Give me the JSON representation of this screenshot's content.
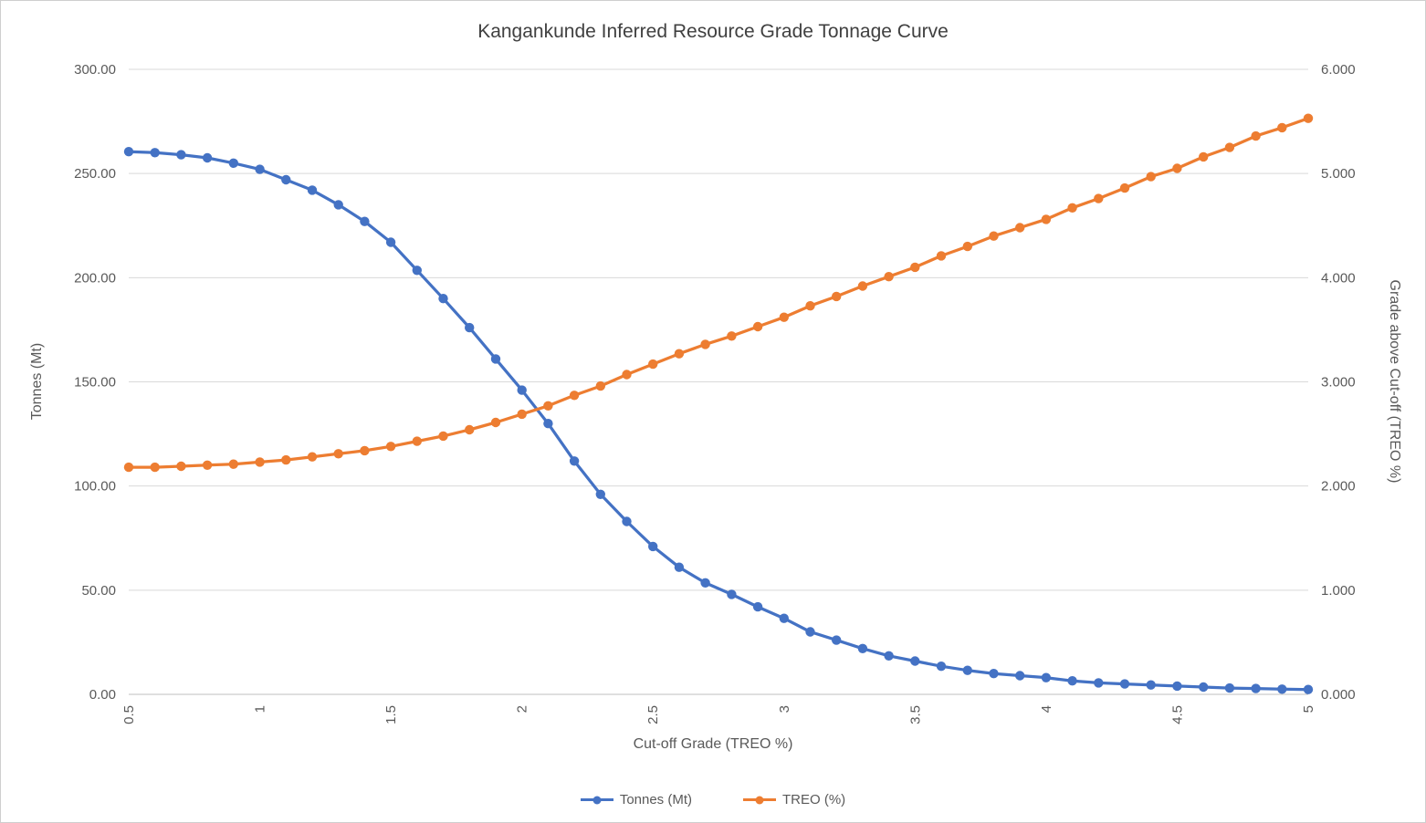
{
  "chart_data": {
    "type": "line",
    "title": "Kangankunde Inferred Resource Grade Tonnage Curve",
    "xlabel": "Cut-off Grade (TREO %)",
    "ylabel_left": "Tonnes (Mt)",
    "ylabel_right": "Grade above Cut-off (TREO %)",
    "xlim": [
      0.5,
      5.0
    ],
    "ylim_left": [
      0,
      300
    ],
    "ylim_right": [
      0,
      6
    ],
    "x_ticks": [
      "0.5",
      "1",
      "1.5",
      "2",
      "2.5",
      "3",
      "3.5",
      "4",
      "4.5",
      "5"
    ],
    "x_tick_values": [
      0.5,
      1,
      1.5,
      2,
      2.5,
      3,
      3.5,
      4,
      4.5,
      5
    ],
    "y_ticks_left": [
      "0.00",
      "50.00",
      "100.00",
      "150.00",
      "200.00",
      "250.00",
      "300.00"
    ],
    "y_ticks_right": [
      "0.000",
      "1.000",
      "2.000",
      "3.000",
      "4.000",
      "5.000",
      "6.000"
    ],
    "grid": true,
    "legend_position": "bottom",
    "x": [
      0.5,
      0.6,
      0.7,
      0.8,
      0.9,
      1.0,
      1.1,
      1.2,
      1.3,
      1.4,
      1.5,
      1.6,
      1.7,
      1.8,
      1.9,
      2.0,
      2.1,
      2.2,
      2.3,
      2.4,
      2.5,
      2.6,
      2.7,
      2.8,
      2.9,
      3.0,
      3.1,
      3.2,
      3.3,
      3.4,
      3.5,
      3.6,
      3.7,
      3.8,
      3.9,
      4.0,
      4.1,
      4.2,
      4.3,
      4.4,
      4.5,
      4.6,
      4.7,
      4.8,
      4.9,
      5.0
    ],
    "series": [
      {
        "name": "Tonnes (Mt)",
        "axis": "left",
        "color": "#4472C4",
        "values": [
          260.5,
          260.0,
          259.0,
          257.5,
          255.0,
          252.0,
          247.0,
          242.0,
          235.0,
          227.0,
          217.0,
          203.5,
          190.0,
          176.0,
          161.0,
          146.0,
          130.0,
          112.0,
          96.0,
          83.0,
          71.0,
          61.0,
          53.5,
          48.0,
          42.0,
          36.5,
          30.0,
          26.0,
          22.0,
          18.5,
          16.0,
          13.5,
          11.5,
          10.0,
          9.0,
          8.0,
          6.5,
          5.5,
          5.0,
          4.5,
          4.0,
          3.5,
          3.0,
          2.8,
          2.5,
          2.3
        ]
      },
      {
        "name": "TREO (%)",
        "axis": "right",
        "color": "#ED7D31",
        "values": [
          2.18,
          2.18,
          2.19,
          2.2,
          2.21,
          2.23,
          2.25,
          2.28,
          2.31,
          2.34,
          2.38,
          2.43,
          2.48,
          2.54,
          2.61,
          2.69,
          2.77,
          2.87,
          2.96,
          3.07,
          3.17,
          3.27,
          3.36,
          3.44,
          3.53,
          3.62,
          3.73,
          3.82,
          3.92,
          4.01,
          4.1,
          4.21,
          4.3,
          4.4,
          4.48,
          4.56,
          4.67,
          4.76,
          4.86,
          4.97,
          5.05,
          5.16,
          5.25,
          5.36,
          5.44,
          5.53
        ]
      }
    ]
  }
}
